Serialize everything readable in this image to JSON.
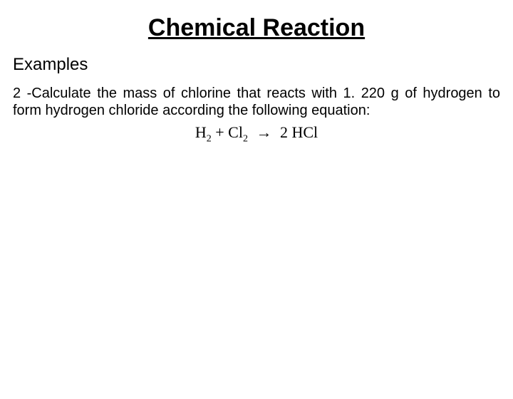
{
  "title": "Chemical Reaction",
  "subtitle": "Examples",
  "problem_text": "2 -Calculate the mass of chlorine that reacts with 1. 220 g of hydrogen to form hydrogen chloride according the following equation:",
  "equation": {
    "h_sub": "2",
    "plus": " + ",
    "cl_sub": "2",
    "arrow": "→",
    "coeff": "2 ",
    "hcl": "HCl"
  },
  "styles": {
    "background": "#ffffff",
    "text_color": "#000000",
    "title_fontsize": 34,
    "subtitle_fontsize": 24,
    "body_fontsize": 20,
    "equation_fontsize": 22
  }
}
